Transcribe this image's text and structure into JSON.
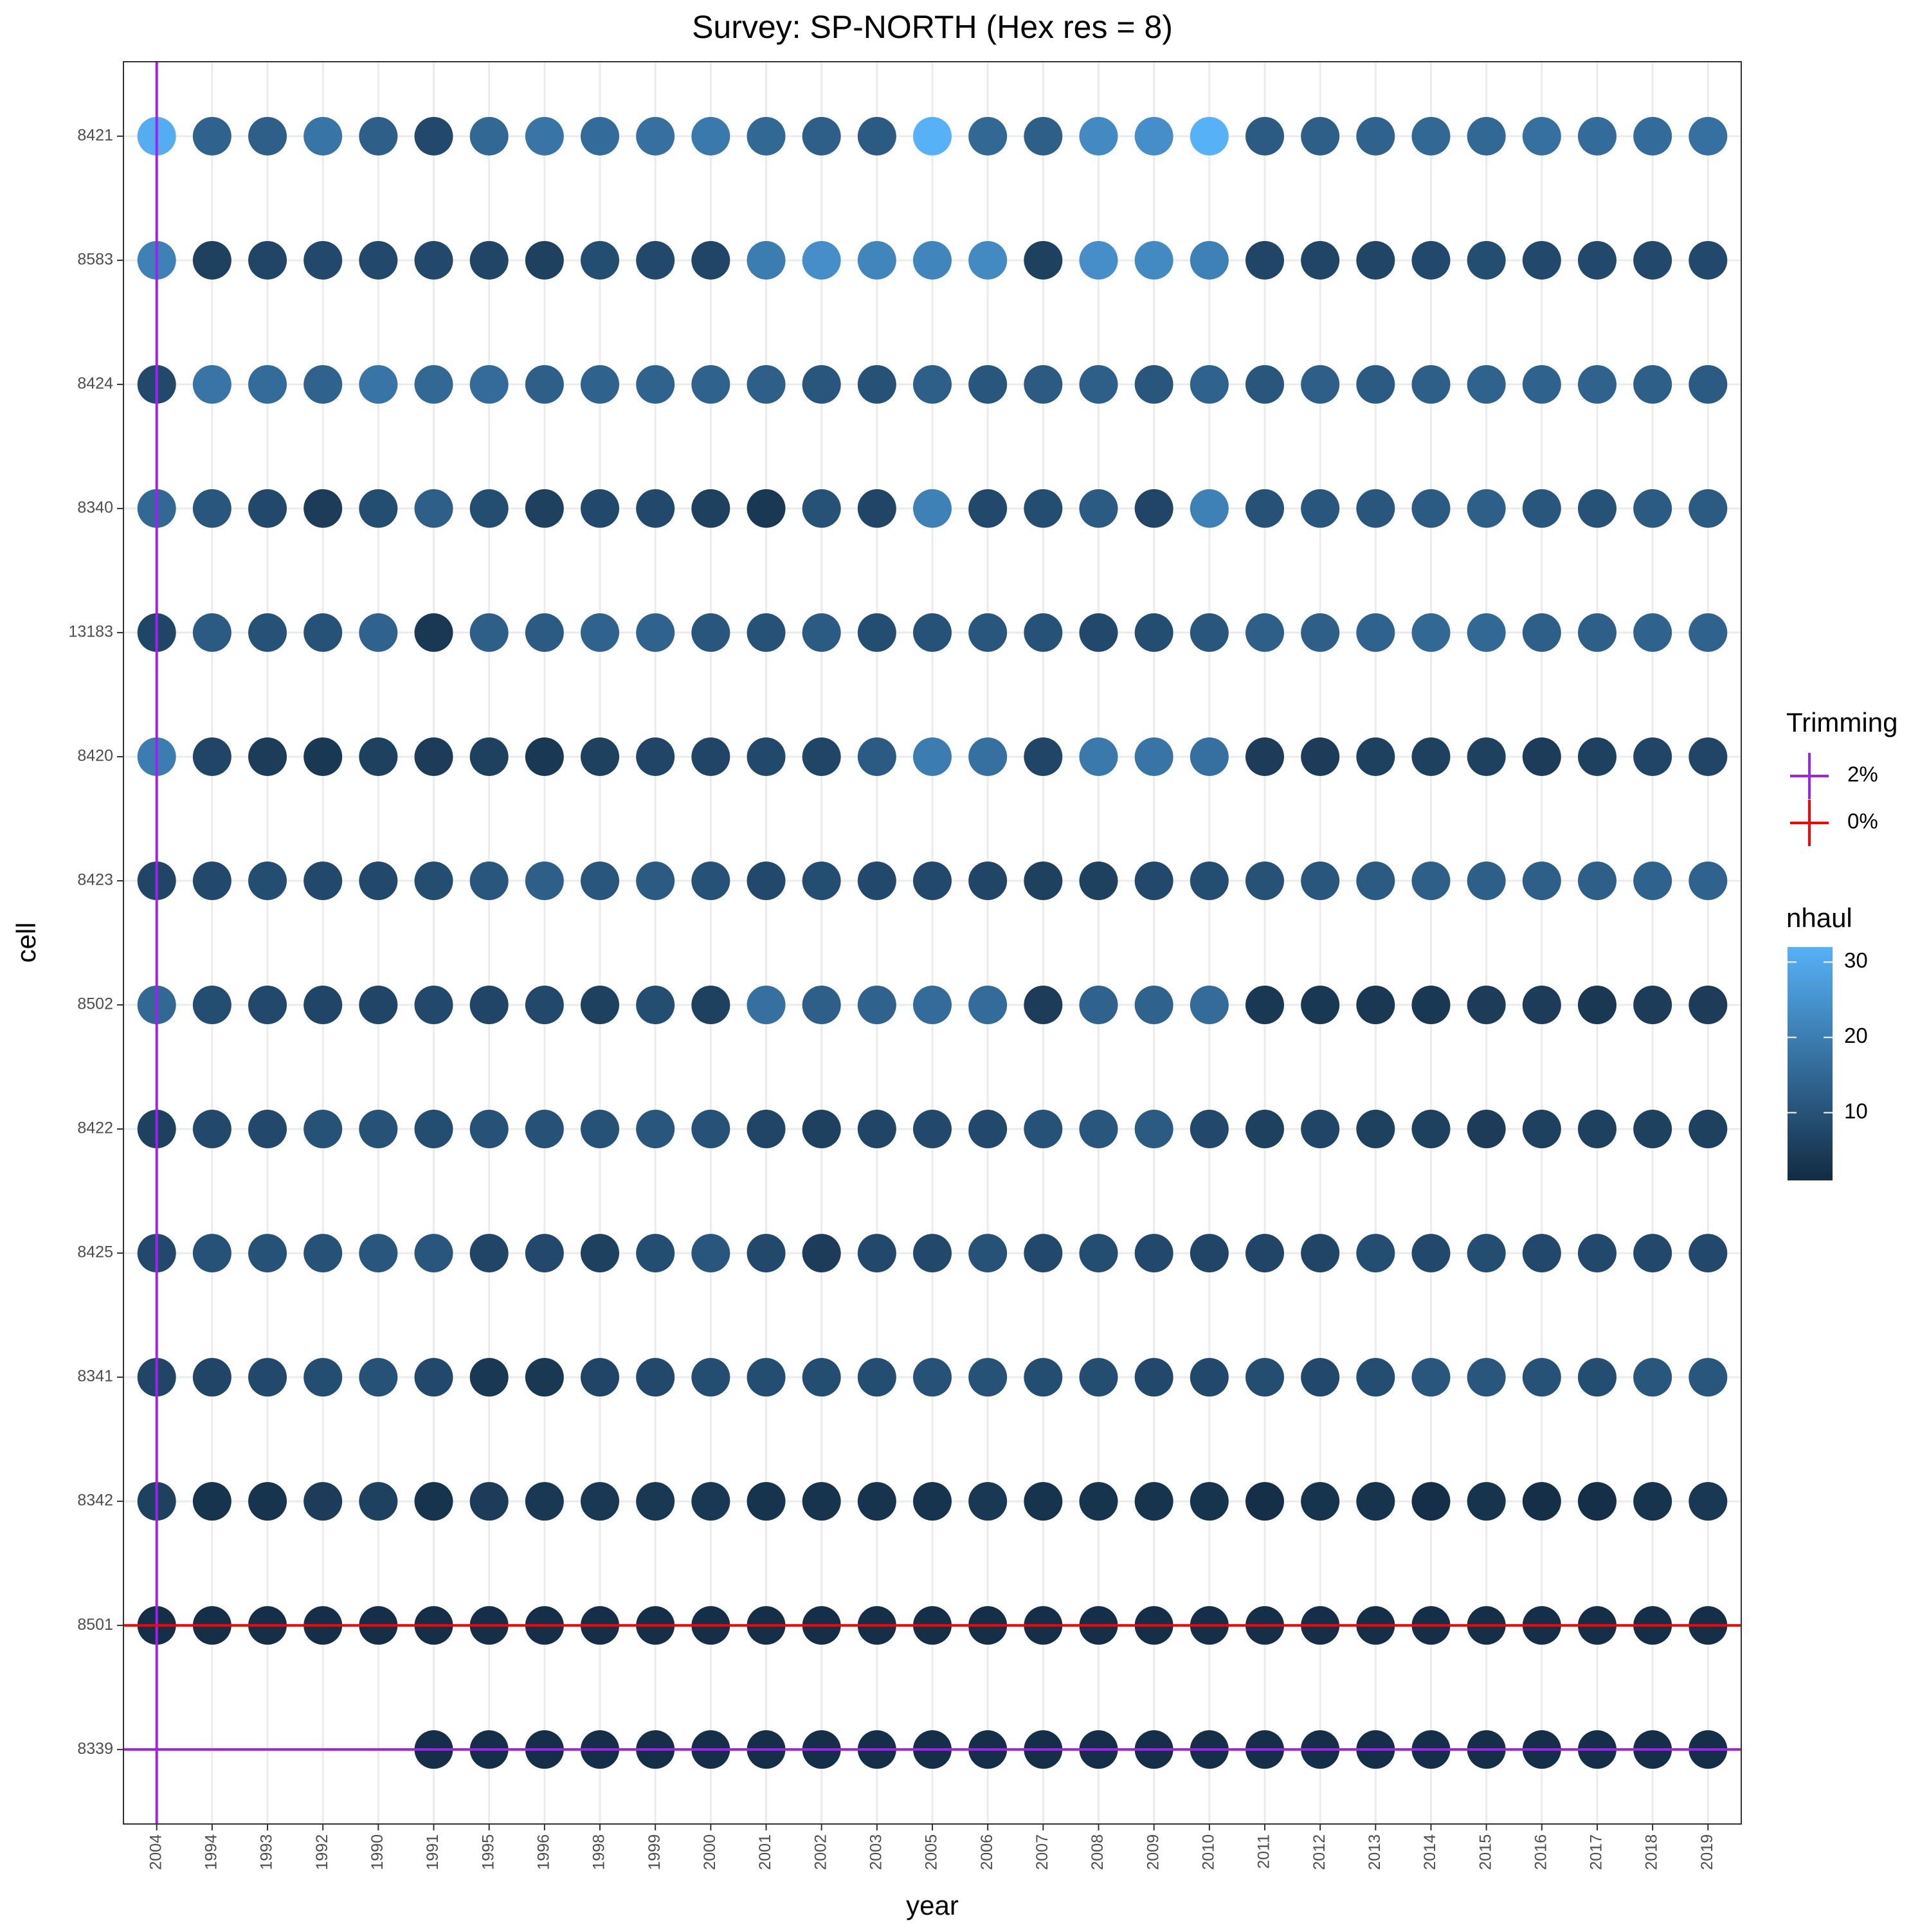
{
  "chart_data": {
    "type": "dot",
    "title": "Survey: SP-NORTH (Hex res = 8)",
    "x_label": "year",
    "y_label": "cell",
    "categories": [
      "2004",
      "1994",
      "1993",
      "1992",
      "1990",
      "1991",
      "1995",
      "1996",
      "1998",
      "1999",
      "2000",
      "2001",
      "2002",
      "2003",
      "2005",
      "2006",
      "2007",
      "2008",
      "2009",
      "2010",
      "2011",
      "2012",
      "2013",
      "2014",
      "2015",
      "2016",
      "2017",
      "2018",
      "2019"
    ],
    "rows": [
      "8421",
      "8583",
      "8424",
      "8340",
      "13183",
      "8420",
      "8423",
      "8502",
      "8422",
      "8425",
      "8341",
      "8342",
      "8501",
      "8339"
    ],
    "values": [
      [
        31,
        14,
        13,
        18,
        13,
        8,
        15,
        18,
        16,
        17,
        19,
        15,
        13,
        12,
        32,
        15,
        13,
        23,
        24,
        32,
        12,
        13,
        14,
        15,
        15,
        17,
        16,
        16,
        17
      ],
      [
        21,
        6,
        7,
        8,
        8,
        8,
        7,
        6,
        9,
        8,
        7,
        20,
        24,
        22,
        22,
        23,
        6,
        24,
        23,
        21,
        7,
        7,
        7,
        8,
        9,
        8,
        8,
        8,
        8
      ],
      [
        8,
        18,
        16,
        14,
        18,
        15,
        16,
        13,
        14,
        14,
        14,
        13,
        11,
        10,
        13,
        11,
        12,
        13,
        11,
        14,
        11,
        13,
        12,
        13,
        14,
        14,
        14,
        13,
        12
      ],
      [
        15,
        11,
        8,
        5,
        9,
        13,
        9,
        6,
        8,
        8,
        6,
        4,
        10,
        7,
        21,
        8,
        9,
        12,
        7,
        21,
        10,
        11,
        11,
        12,
        13,
        11,
        10,
        12,
        12
      ],
      [
        7,
        12,
        10,
        10,
        14,
        4,
        13,
        12,
        14,
        14,
        11,
        10,
        12,
        9,
        10,
        11,
        10,
        8,
        9,
        11,
        13,
        13,
        14,
        15,
        15,
        13,
        13,
        14,
        14
      ],
      [
        20,
        7,
        5,
        4,
        6,
        5,
        6,
        4,
        6,
        7,
        7,
        8,
        7,
        12,
        20,
        17,
        7,
        19,
        18,
        17,
        5,
        5,
        6,
        6,
        6,
        5,
        6,
        7,
        7
      ],
      [
        7,
        8,
        9,
        8,
        8,
        9,
        11,
        13,
        11,
        12,
        10,
        8,
        9,
        8,
        8,
        7,
        6,
        6,
        8,
        9,
        10,
        11,
        12,
        13,
        13,
        13,
        13,
        14,
        14
      ],
      [
        15,
        9,
        8,
        7,
        7,
        8,
        7,
        8,
        6,
        9,
        6,
        17,
        13,
        14,
        16,
        16,
        5,
        14,
        14,
        16,
        4,
        4,
        4,
        4,
        5,
        5,
        4,
        5,
        5
      ],
      [
        6,
        8,
        8,
        10,
        10,
        9,
        10,
        10,
        10,
        11,
        10,
        7,
        6,
        7,
        8,
        8,
        10,
        11,
        12,
        8,
        6,
        7,
        6,
        6,
        5,
        6,
        6,
        6,
        6
      ],
      [
        8,
        10,
        10,
        10,
        11,
        11,
        7,
        8,
        6,
        9,
        11,
        8,
        5,
        8,
        8,
        10,
        8,
        9,
        8,
        7,
        7,
        7,
        9,
        8,
        9,
        8,
        8,
        8,
        8
      ],
      [
        7,
        7,
        8,
        9,
        10,
        8,
        4,
        4,
        7,
        8,
        9,
        9,
        9,
        9,
        10,
        10,
        9,
        9,
        8,
        8,
        9,
        8,
        9,
        11,
        11,
        10,
        9,
        11,
        11
      ],
      [
        6,
        3,
        3,
        5,
        6,
        3,
        5,
        4,
        4,
        4,
        4,
        3,
        3,
        3,
        3,
        4,
        3,
        3,
        3,
        3,
        2,
        3,
        3,
        2,
        3,
        2,
        2,
        3,
        4
      ],
      [
        2,
        2,
        2,
        2,
        2,
        2,
        2,
        2,
        2,
        2,
        2,
        2,
        2,
        2,
        2,
        2,
        2,
        2,
        2,
        2,
        2,
        2,
        2,
        2,
        2,
        2,
        2,
        2,
        2
      ],
      [
        null,
        null,
        null,
        null,
        null,
        2,
        2,
        2,
        2,
        2,
        2,
        2,
        2,
        2,
        2,
        2,
        2,
        2,
        2,
        2,
        2,
        2,
        2,
        2,
        2,
        2,
        2,
        2,
        2
      ]
    ],
    "vlines": [
      {
        "x": "2004",
        "color": "#A020F0"
      }
    ],
    "hlines": [
      {
        "y": "8339",
        "color": "#A020F0"
      },
      {
        "y": "8501",
        "color": "#FF0000"
      }
    ],
    "trimming_legend": {
      "title": "Trimming",
      "items": [
        {
          "label": "2%",
          "color": "#A020F0"
        },
        {
          "label": "0%",
          "color": "#FF0000"
        }
      ]
    },
    "colorbar": {
      "title": "nhaul",
      "lim": [
        1,
        32
      ],
      "ticks": [
        10,
        20,
        30
      ],
      "low": "#132B43",
      "high": "#56B1F7"
    },
    "grid": true
  }
}
